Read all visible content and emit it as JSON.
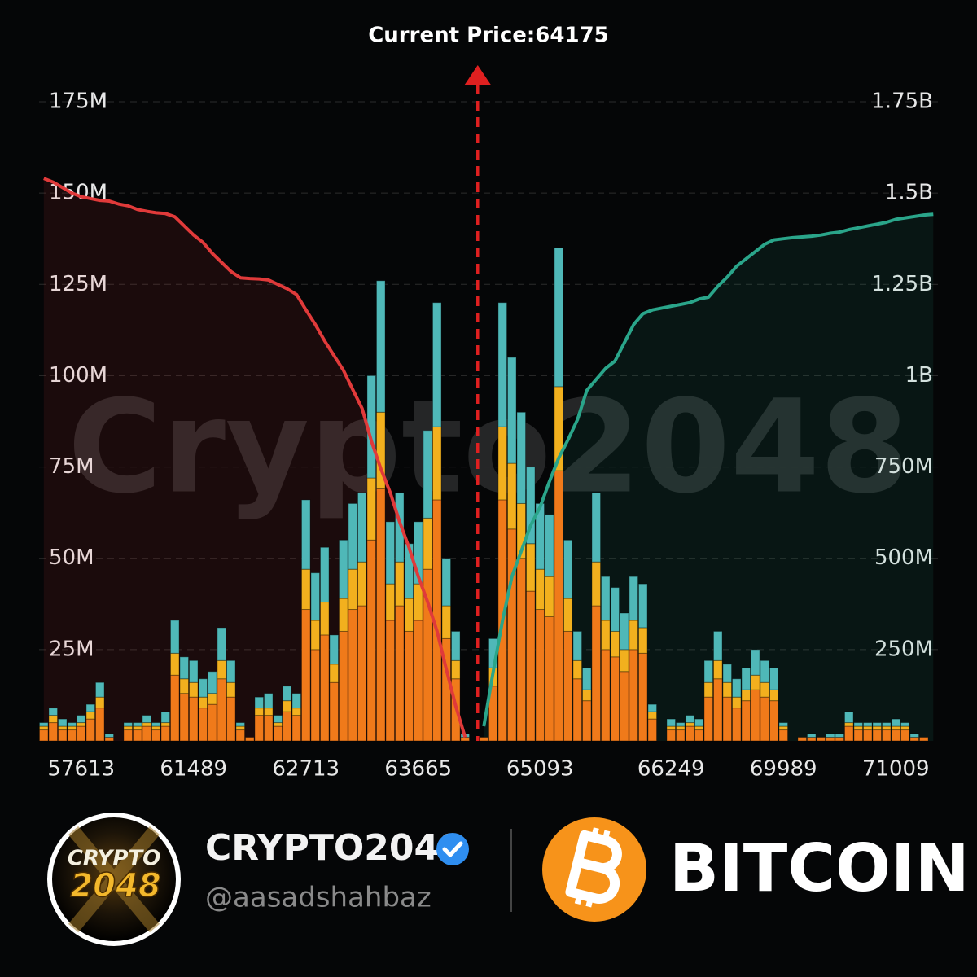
{
  "chart_data": {
    "type": "bar",
    "annotation": "Current Price:64175",
    "categories": [
      null,
      null,
      null,
      null,
      "57613",
      null,
      null,
      null,
      null,
      null,
      null,
      null,
      null,
      null,
      null,
      null,
      "61489",
      null,
      null,
      null,
      null,
      null,
      null,
      null,
      null,
      null,
      null,
      null,
      "62713",
      null,
      null,
      null,
      null,
      null,
      null,
      null,
      null,
      null,
      null,
      null,
      "63665",
      null,
      null,
      null,
      null,
      null,
      null,
      null,
      null,
      null,
      null,
      null,
      null,
      "65093",
      null,
      null,
      null,
      null,
      null,
      null,
      null,
      null,
      null,
      null,
      null,
      null,
      null,
      "66249",
      null,
      null,
      null,
      null,
      null,
      null,
      null,
      null,
      null,
      null,
      null,
      "69989",
      null,
      null,
      null,
      null,
      null,
      null,
      null,
      null,
      null,
      null,
      null,
      "71009",
      null,
      null,
      null,
      null
    ],
    "series": [
      {
        "color": "#f07a1a",
        "values": [
          3,
          5,
          3,
          3,
          4,
          6,
          9,
          1,
          0,
          3,
          3,
          4,
          3,
          4,
          18,
          13,
          12,
          9,
          10,
          17,
          12,
          3,
          1,
          7,
          7,
          4,
          8,
          7,
          36,
          25,
          29,
          16,
          30,
          36,
          37,
          55,
          69,
          33,
          37,
          30,
          33,
          47,
          66,
          28,
          17,
          1,
          0,
          1,
          15,
          66,
          58,
          50,
          41,
          36,
          34,
          74,
          30,
          17,
          11,
          37,
          25,
          23,
          19,
          25,
          24,
          6,
          0,
          3,
          3,
          4,
          3,
          12,
          17,
          12,
          9,
          11,
          14,
          12,
          11,
          3,
          0,
          1,
          1,
          1,
          1,
          1,
          4,
          3,
          3,
          3,
          3,
          3,
          3,
          1,
          1,
          0
        ]
      },
      {
        "color": "#f2b01e",
        "values": [
          1,
          2,
          1,
          1,
          1,
          2,
          3,
          0,
          0,
          1,
          1,
          1,
          1,
          1,
          6,
          4,
          4,
          3,
          3,
          5,
          4,
          1,
          0,
          2,
          2,
          1,
          3,
          2,
          11,
          8,
          9,
          5,
          9,
          11,
          12,
          17,
          21,
          10,
          12,
          9,
          10,
          14,
          20,
          9,
          5,
          0,
          0,
          0,
          5,
          20,
          18,
          15,
          13,
          11,
          11,
          23,
          9,
          5,
          3,
          12,
          8,
          7,
          6,
          8,
          7,
          2,
          0,
          1,
          1,
          1,
          1,
          4,
          5,
          4,
          3,
          3,
          4,
          4,
          3,
          1,
          0,
          0,
          0,
          0,
          0,
          0,
          1,
          1,
          1,
          1,
          1,
          1,
          1,
          0,
          0,
          0
        ]
      },
      {
        "color": "#4fb8b8",
        "values": [
          1,
          2,
          2,
          1,
          2,
          2,
          4,
          1,
          0,
          1,
          1,
          2,
          1,
          3,
          9,
          6,
          6,
          5,
          6,
          9,
          6,
          1,
          0,
          3,
          4,
          2,
          4,
          4,
          19,
          13,
          15,
          8,
          16,
          18,
          19,
          28,
          36,
          17,
          19,
          15,
          17,
          24,
          34,
          13,
          8,
          1,
          0,
          0,
          8,
          34,
          29,
          25,
          21,
          18,
          17,
          38,
          16,
          8,
          6,
          19,
          12,
          12,
          10,
          12,
          12,
          2,
          0,
          2,
          1,
          2,
          2,
          6,
          8,
          5,
          5,
          6,
          7,
          6,
          6,
          1,
          0,
          0,
          1,
          0,
          1,
          1,
          3,
          1,
          1,
          1,
          1,
          2,
          1,
          1,
          0,
          0
        ]
      },
      {
        "type": "line",
        "axis": "y2",
        "color": "#e03a3a",
        "values": [
          1540,
          1530,
          1515,
          1500,
          1490,
          1485,
          1480,
          1478,
          1470,
          1465,
          1455,
          1450,
          1446,
          1444,
          1435,
          1410,
          1385,
          1365,
          1335,
          1310,
          1285,
          1268,
          1266,
          1265,
          1262,
          1250,
          1238,
          1222,
          1180,
          1140,
          1095,
          1055,
          1015,
          962,
          910,
          820,
          745,
          680,
          600,
          530,
          450,
          380,
          300,
          195,
          95,
          10,
          null,
          null,
          null,
          null,
          null,
          null,
          null,
          null,
          null,
          null,
          null,
          null,
          null,
          null,
          null,
          null,
          null,
          null,
          null,
          null,
          null,
          null,
          null,
          null,
          null,
          null,
          null,
          null,
          null,
          null,
          null,
          null,
          null,
          null,
          null,
          null,
          null,
          null,
          null,
          null,
          null,
          null,
          null,
          null,
          null,
          null,
          null,
          null,
          null,
          null
        ]
      },
      {
        "type": "line",
        "axis": "y2",
        "color": "#2aa58a",
        "values": [
          null,
          null,
          null,
          null,
          null,
          null,
          null,
          null,
          null,
          null,
          null,
          null,
          null,
          null,
          null,
          null,
          null,
          null,
          null,
          null,
          null,
          null,
          null,
          null,
          null,
          null,
          null,
          null,
          null,
          null,
          null,
          null,
          null,
          null,
          null,
          null,
          null,
          null,
          null,
          null,
          null,
          null,
          null,
          null,
          null,
          null,
          null,
          40,
          190,
          330,
          450,
          520,
          590,
          640,
          710,
          775,
          825,
          880,
          960,
          990,
          1020,
          1040,
          1090,
          1140,
          1170,
          1180,
          1185,
          1190,
          1195,
          1200,
          1210,
          1215,
          1245,
          1270,
          1300,
          1320,
          1340,
          1360,
          1372,
          1375,
          1378,
          1380,
          1382,
          1385,
          1390,
          1393,
          1400,
          1405,
          1410,
          1415,
          1420,
          1428,
          1432,
          1436,
          1440,
          1442
        ]
      }
    ],
    "ylim": [
      0,
      175
    ],
    "yticks": [
      {
        "value": 25,
        "label": "25M"
      },
      {
        "value": 50,
        "label": "50M"
      },
      {
        "value": 75,
        "label": "75M"
      },
      {
        "value": 100,
        "label": "100M"
      },
      {
        "value": 125,
        "label": "125M"
      },
      {
        "value": 150,
        "label": "150M"
      },
      {
        "value": 175,
        "label": "175M"
      }
    ],
    "y2lim": [
      0,
      1750
    ],
    "y2ticks": [
      {
        "value": 250,
        "label": "250M"
      },
      {
        "value": 500,
        "label": "500M"
      },
      {
        "value": 750,
        "label": "750M"
      },
      {
        "value": 1000,
        "label": "1B"
      },
      {
        "value": 1250,
        "label": "1.25B"
      },
      {
        "value": 1500,
        "label": "1.5B"
      },
      {
        "value": 1750,
        "label": "1.75B"
      }
    ],
    "grid": true
  },
  "watermark": "Crypto2048",
  "profile": {
    "logo_text": [
      "CRYPTO",
      "2048"
    ],
    "name": "CRYPTO2048",
    "handle": "@aasadshahbaz"
  },
  "coin": {
    "name": "BITCOIN"
  }
}
